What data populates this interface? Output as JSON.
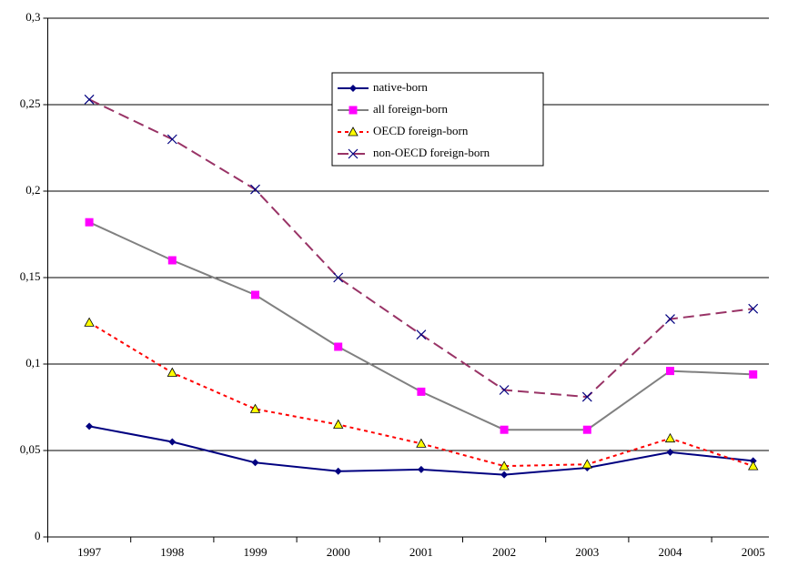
{
  "chart_data": {
    "type": "line",
    "categories": [
      "1997",
      "1998",
      "1999",
      "2000",
      "2001",
      "2002",
      "2003",
      "2004",
      "2005"
    ],
    "series": [
      {
        "name": "native-born",
        "color": "#000080",
        "marker_color": "#000080",
        "marker": "diamond",
        "line_style": "solid",
        "values": [
          0.064,
          0.055,
          0.043,
          0.038,
          0.039,
          0.036,
          0.04,
          0.049,
          0.044
        ]
      },
      {
        "name": "all foreign-born",
        "color": "#808080",
        "marker_color": "#ff00ff",
        "marker": "square",
        "line_style": "solid",
        "values": [
          0.182,
          0.16,
          0.14,
          0.11,
          0.084,
          0.062,
          0.062,
          0.096,
          0.094
        ]
      },
      {
        "name": "OECD foreign-born",
        "color": "#ff0000",
        "marker_color": "#ffff00",
        "marker": "triangle",
        "line_style": "dotted",
        "values": [
          0.124,
          0.095,
          0.074,
          0.065,
          0.054,
          0.041,
          0.042,
          0.057,
          0.041
        ]
      },
      {
        "name": "non-OECD foreign-born",
        "color": "#993366",
        "marker_color": "#000080",
        "marker": "x",
        "line_style": "dashed",
        "values": [
          0.253,
          0.23,
          0.201,
          0.15,
          0.117,
          0.085,
          0.081,
          0.126,
          0.132
        ]
      }
    ],
    "ylim": [
      0,
      0.3
    ],
    "yticks": [
      0,
      {
        "value": 0.05,
        "label": "0,05"
      },
      {
        "value": 0.1,
        "label": "0,1"
      },
      {
        "value": 0.15,
        "label": "0,15"
      },
      {
        "value": 0.2,
        "label": "0,2"
      },
      {
        "value": 0.25,
        "label": "0,25"
      },
      {
        "value": 0.3,
        "label": "0,3"
      }
    ],
    "grid": true
  }
}
